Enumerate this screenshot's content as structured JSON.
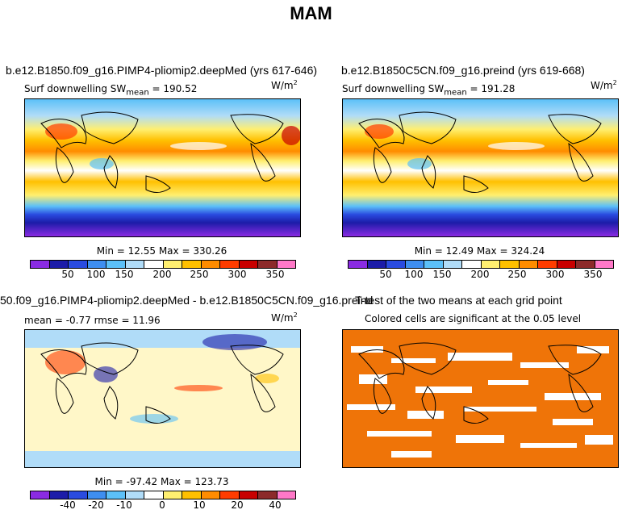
{
  "page_title": "MAM",
  "panels": [
    {
      "title": "b.e12.B1850.f09_g16.PIMP4-pliomip2.deepMed (yrs 617-646)",
      "subtitle_var": "Surf downwelling SW",
      "subtitle_stat": "mean",
      "subtitle_value": "= 190.52",
      "units_base": "W/m",
      "units_exp": "2",
      "minmax": "Min =   12.55 Max = 330.26"
    },
    {
      "title": "b.e12.B1850C5CN.f09_g16.preind (yrs 619-668)",
      "subtitle_var": "Surf downwelling SW",
      "subtitle_stat": "mean",
      "subtitle_value": "= 191.28",
      "units_base": "W/m",
      "units_exp": "2",
      "minmax": "Min =   12.49 Max = 324.24"
    },
    {
      "title": "50.f09_g16.PIMP4-pliomip2.deepMed - b.e12.B1850C5CN.f09_g16.preind",
      "subtitle_text": "mean =  -0.77     rmse =  11.96",
      "units_base": "W/m",
      "units_exp": "2",
      "minmax": "Min = -97.42 Max = 123.73"
    },
    {
      "title": "T-test of the two means at each grid point",
      "subtitle_text": "Colored cells are significant at the 0.05 level"
    }
  ],
  "chart_data": [
    {
      "type": "heatmap",
      "panel": 1,
      "variable": "Surf downwelling SW",
      "units": "W/m2",
      "mean": 190.52,
      "min": 12.55,
      "max": 330.26,
      "colorbar_ticks": [
        50,
        100,
        150,
        200,
        250,
        300,
        350
      ],
      "colorbar_colors": [
        "#8a2be2",
        "#1c1ca8",
        "#2a4be0",
        "#3e8ef0",
        "#5cc0f8",
        "#b0dcf8",
        "#ffffff",
        "#ffef70",
        "#ffc000",
        "#ff8c00",
        "#ff3c00",
        "#c80000",
        "#8c2a2a",
        "#ff78c8"
      ]
    },
    {
      "type": "heatmap",
      "panel": 2,
      "variable": "Surf downwelling SW",
      "units": "W/m2",
      "mean": 191.28,
      "min": 12.49,
      "max": 324.24,
      "colorbar_ticks": [
        50,
        100,
        150,
        200,
        250,
        300,
        350
      ],
      "colorbar_colors": [
        "#8a2be2",
        "#1c1ca8",
        "#2a4be0",
        "#3e8ef0",
        "#5cc0f8",
        "#b0dcf8",
        "#ffffff",
        "#ffef70",
        "#ffc000",
        "#ff8c00",
        "#ff3c00",
        "#c80000",
        "#8c2a2a",
        "#ff78c8"
      ]
    },
    {
      "type": "heatmap",
      "panel": 3,
      "variable": "difference",
      "units": "W/m2",
      "mean": -0.77,
      "rmse": 11.96,
      "min": -97.42,
      "max": 123.73,
      "colorbar_ticks": [
        -40,
        -20,
        -10,
        0,
        10,
        20,
        40
      ],
      "colorbar_colors": [
        "#8a2be2",
        "#1c1ca8",
        "#2a4be0",
        "#3e8ef0",
        "#5cc0f8",
        "#b0dcf8",
        "#ffffff",
        "#ffef70",
        "#ffc000",
        "#ff8c00",
        "#ff3c00",
        "#c80000",
        "#8c2a2a",
        "#ff78c8"
      ]
    },
    {
      "type": "heatmap",
      "panel": 4,
      "variable": "t-test significance",
      "significance_level": 0.05,
      "significant_color": "#ef7408",
      "insignificant_color": "#ffffff"
    }
  ]
}
